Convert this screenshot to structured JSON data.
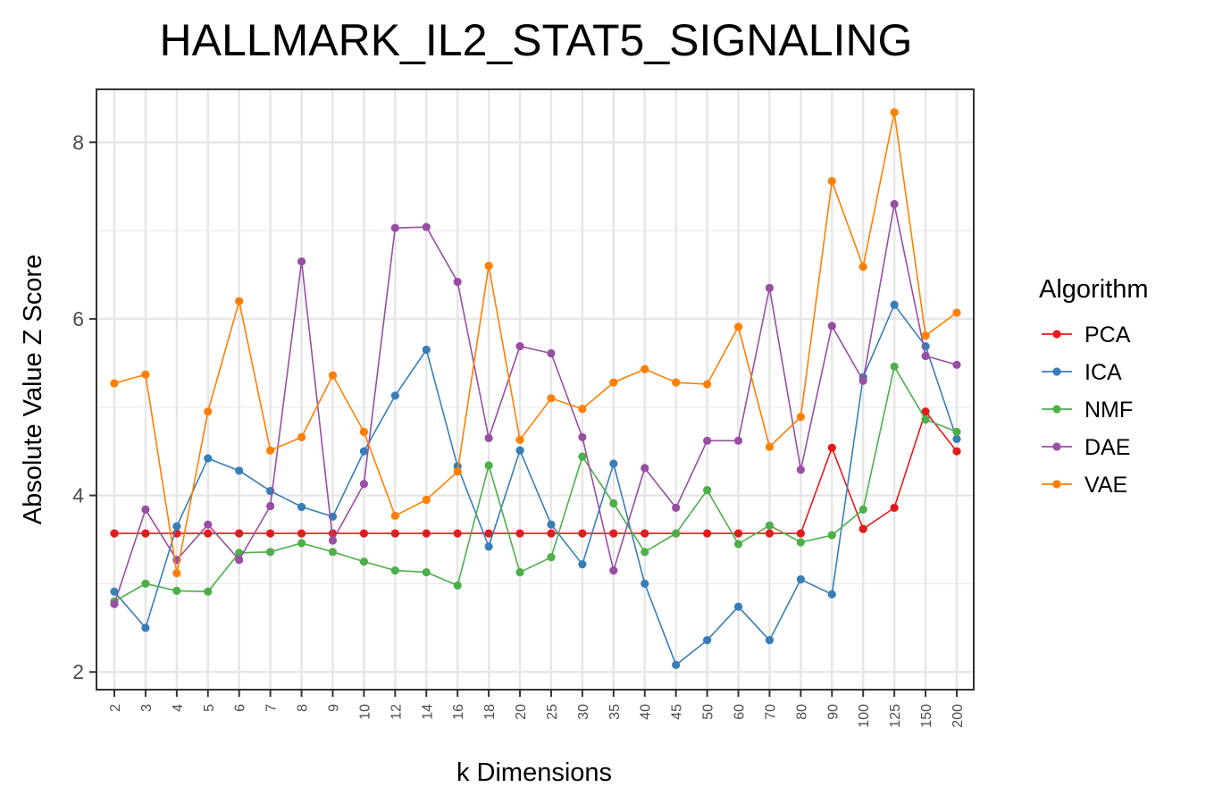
{
  "chart_data": {
    "type": "line",
    "title": "HALLMARK_IL2_STAT5_SIGNALING",
    "xlabel": "k Dimensions",
    "ylabel": "Absolute Value Z Score",
    "categories": [
      "2",
      "3",
      "4",
      "5",
      "6",
      "7",
      "8",
      "9",
      "10",
      "12",
      "14",
      "16",
      "18",
      "20",
      "25",
      "30",
      "35",
      "40",
      "45",
      "50",
      "60",
      "70",
      "80",
      "90",
      "100",
      "125",
      "150",
      "200"
    ],
    "yticks": [
      "2",
      "4",
      "6",
      "8"
    ],
    "ylim": [
      1.8,
      8.6
    ],
    "grid": true,
    "legend": {
      "title": "Algorithm",
      "placement": "right"
    },
    "series": [
      {
        "name": "PCA",
        "color": "#e41a1c",
        "values": [
          3.57,
          3.57,
          3.57,
          3.57,
          3.57,
          3.57,
          3.57,
          3.57,
          3.57,
          3.57,
          3.57,
          3.57,
          3.57,
          3.57,
          3.57,
          3.57,
          3.57,
          3.57,
          3.57,
          3.57,
          3.57,
          3.57,
          3.57,
          4.54,
          3.62,
          3.86,
          4.95,
          4.5
        ]
      },
      {
        "name": "ICA",
        "color": "#377eb8",
        "values": [
          2.91,
          2.5,
          3.65,
          4.42,
          4.28,
          4.05,
          3.87,
          3.76,
          4.5,
          5.13,
          5.65,
          4.33,
          3.42,
          4.51,
          3.67,
          3.22,
          4.36,
          3.0,
          2.08,
          2.36,
          2.74,
          2.36,
          3.05,
          2.88,
          5.34,
          6.16,
          5.69,
          4.64
        ]
      },
      {
        "name": "NMF",
        "color": "#4daf4a",
        "values": [
          2.8,
          3.0,
          2.92,
          2.91,
          3.35,
          3.36,
          3.46,
          3.36,
          3.25,
          3.15,
          3.13,
          2.98,
          4.34,
          3.13,
          3.3,
          4.44,
          3.91,
          3.36,
          3.57,
          4.06,
          3.45,
          3.66,
          3.47,
          3.55,
          3.84,
          5.46,
          4.86,
          4.72
        ]
      },
      {
        "name": "DAE",
        "color": "#984ea3",
        "values": [
          2.77,
          3.84,
          3.27,
          3.67,
          3.27,
          3.88,
          6.65,
          3.49,
          4.13,
          7.03,
          7.04,
          6.42,
          4.65,
          5.69,
          5.61,
          4.66,
          3.15,
          4.31,
          3.86,
          4.62,
          4.62,
          6.35,
          4.29,
          5.92,
          5.3,
          7.3,
          5.58,
          5.48
        ]
      },
      {
        "name": "VAE",
        "color": "#ff7f00",
        "values": [
          5.27,
          5.37,
          3.12,
          4.95,
          6.2,
          4.51,
          4.66,
          5.36,
          4.72,
          3.77,
          3.95,
          4.27,
          6.6,
          4.63,
          5.1,
          4.98,
          5.28,
          5.43,
          5.28,
          5.26,
          5.91,
          4.55,
          4.89,
          7.56,
          6.59,
          8.34,
          5.81,
          6.07
        ]
      }
    ]
  }
}
